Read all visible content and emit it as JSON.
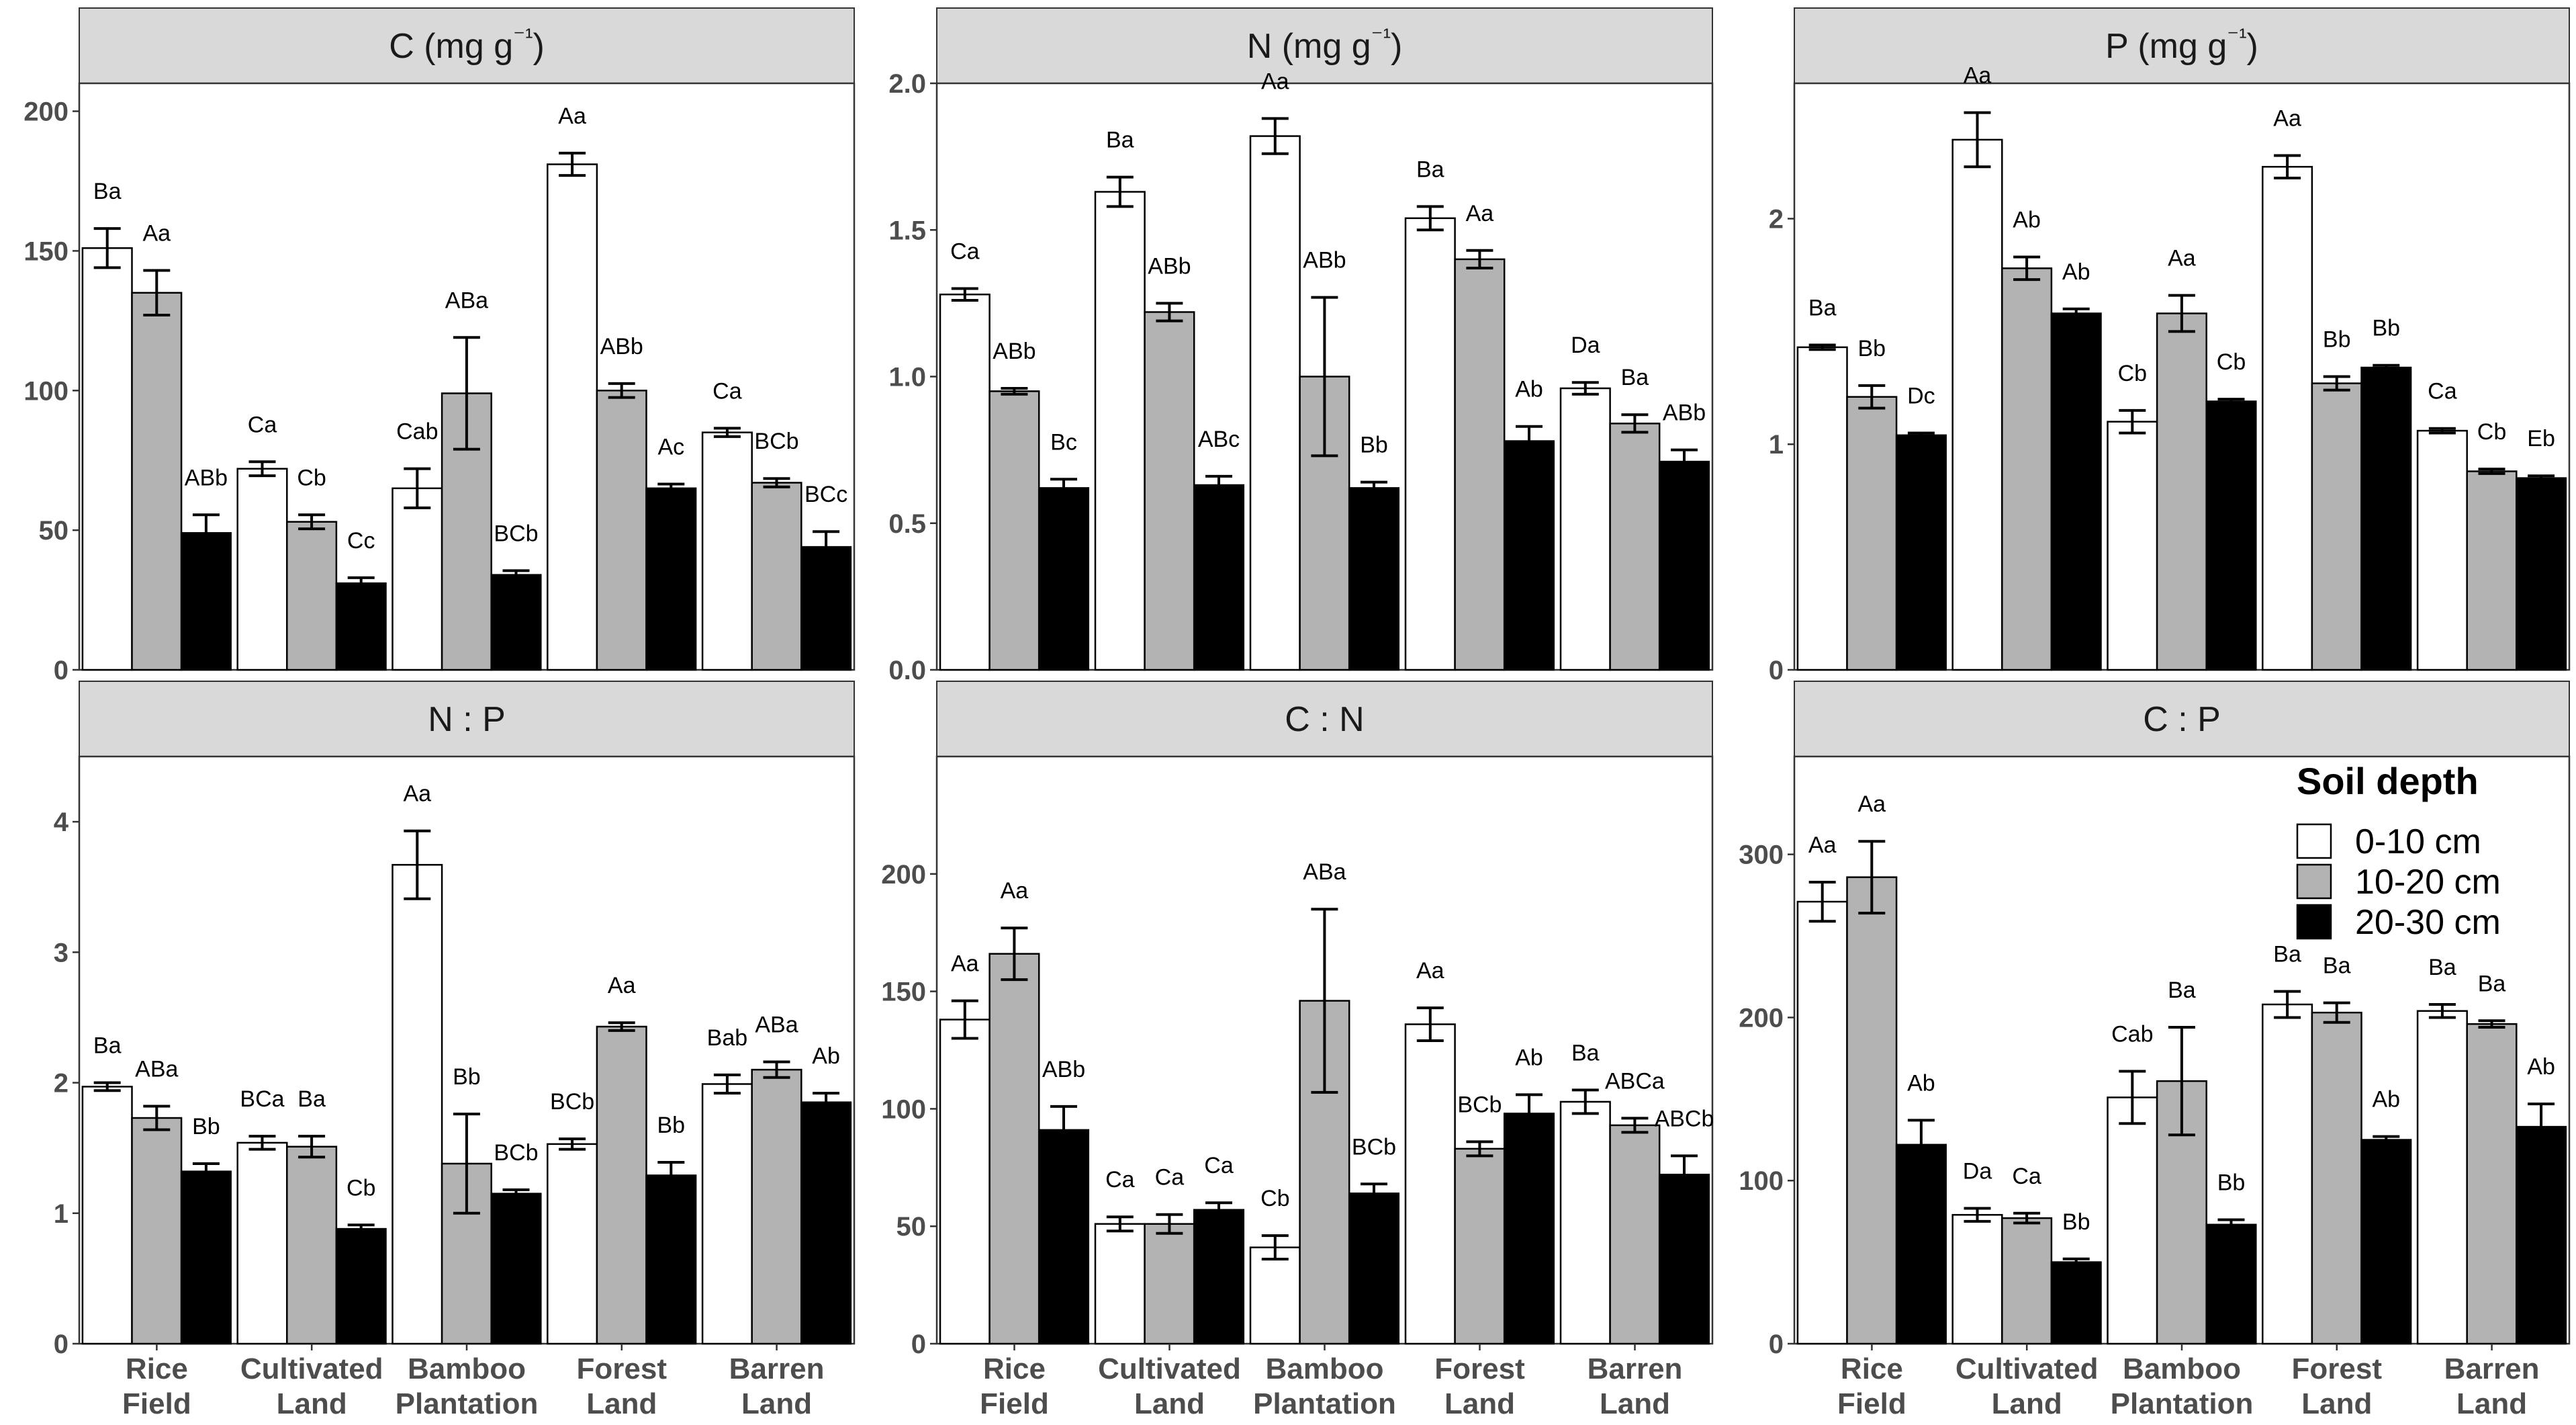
{
  "legend": {
    "title": "Soil depth",
    "entries": [
      {
        "label": "0-10 cm",
        "color": "#ffffff"
      },
      {
        "label": "10-20 cm",
        "color": "#b3b3b3"
      },
      {
        "label": "20-30 cm",
        "color": "#000000"
      }
    ]
  },
  "category_labels": [
    [
      "Rice",
      "Field"
    ],
    [
      "Cultivated",
      "Land"
    ],
    [
      "Bamboo",
      "Plantation"
    ],
    [
      "Forest",
      "Land"
    ],
    [
      "Barren",
      "Land"
    ]
  ],
  "chart_data": [
    {
      "type": "bar",
      "title": "C (mg g⁻¹)",
      "categories": [
        "Rice Field",
        "Cultivated Land",
        "Bamboo Plantation",
        "Forest Land",
        "Barren Land"
      ],
      "ylim": [
        0,
        210
      ],
      "yticks": [
        0,
        50,
        100,
        150,
        200
      ],
      "ytick_labels": [
        "0",
        "50",
        "100",
        "150",
        "200"
      ],
      "series": [
        {
          "name": "0-10 cm",
          "values": [
            151,
            72,
            65,
            181,
            85
          ],
          "errors": [
            7,
            2.5,
            7,
            4,
            1.5
          ],
          "labels": [
            "Ba",
            "Ca",
            "Cab",
            "Aa",
            "Ca"
          ]
        },
        {
          "name": "10-20 cm",
          "values": [
            135,
            53,
            99,
            100,
            67
          ],
          "errors": [
            8,
            2.5,
            20,
            2.5,
            1.5
          ],
          "labels": [
            "Aa",
            "Cb",
            "ABa",
            "ABb",
            "BCb"
          ]
        },
        {
          "name": "20-30 cm",
          "values": [
            49,
            31,
            34,
            65,
            44
          ],
          "errors": [
            6.5,
            2,
            1.5,
            1.5,
            5.5
          ],
          "labels": [
            "ABb",
            "Cc",
            "BCb",
            "Ac",
            "BCc"
          ]
        }
      ]
    },
    {
      "type": "bar",
      "title": "N (mg g⁻¹)",
      "categories": [
        "Rice Field",
        "Cultivated Land",
        "Bamboo Plantation",
        "Forest Land",
        "Barren Land"
      ],
      "ylim": [
        0,
        2.0
      ],
      "yticks": [
        0,
        0.5,
        1,
        1.5,
        2
      ],
      "ytick_labels": [
        "0.0",
        "0.5",
        "1.0",
        "1.5",
        "2.0"
      ],
      "series": [
        {
          "name": "0-10 cm",
          "values": [
            1.28,
            1.63,
            1.82,
            1.54,
            0.96
          ],
          "errors": [
            0.02,
            0.05,
            0.06,
            0.04,
            0.02
          ],
          "labels": [
            "Ca",
            "Ba",
            "Aa",
            "Ba",
            "Da"
          ]
        },
        {
          "name": "10-20 cm",
          "values": [
            0.95,
            1.22,
            1.0,
            1.4,
            0.84
          ],
          "errors": [
            0.01,
            0.03,
            0.27,
            0.03,
            0.03
          ],
          "labels": [
            "ABb",
            "ABb",
            "ABb",
            "Aa",
            "Ba"
          ]
        },
        {
          "name": "20-30 cm",
          "values": [
            0.62,
            0.63,
            0.62,
            0.78,
            0.71
          ],
          "errors": [
            0.03,
            0.03,
            0.02,
            0.05,
            0.04
          ],
          "labels": [
            "Bc",
            "ABc",
            "Bb",
            "Ab",
            "ABb"
          ]
        }
      ]
    },
    {
      "type": "bar",
      "title": "P (mg g⁻¹)",
      "categories": [
        "Rice Field",
        "Cultivated Land",
        "Bamboo Plantation",
        "Forest Land",
        "Barren Land"
      ],
      "ylim": [
        0,
        2.6
      ],
      "yticks": [
        0,
        1,
        2
      ],
      "ytick_labels": [
        "0",
        "1",
        "2"
      ],
      "series": [
        {
          "name": "0-10 cm",
          "values": [
            1.43,
            2.35,
            1.1,
            2.23,
            1.06
          ],
          "errors": [
            0.01,
            0.12,
            0.05,
            0.05,
            0.01
          ],
          "labels": [
            "Ba",
            "Aa",
            "Cb",
            "Aa",
            "Ca"
          ]
        },
        {
          "name": "10-20 cm",
          "values": [
            1.21,
            1.78,
            1.58,
            1.27,
            0.88
          ],
          "errors": [
            0.05,
            0.05,
            0.08,
            0.03,
            0.01
          ],
          "labels": [
            "Bb",
            "Ab",
            "Aa",
            "Bb",
            "Cb"
          ]
        },
        {
          "name": "20-30 cm",
          "values": [
            1.04,
            1.58,
            1.19,
            1.34,
            0.85
          ],
          "errors": [
            0.01,
            0.02,
            0.01,
            0.01,
            0.01
          ],
          "labels": [
            "Dc",
            "Ab",
            "Cb",
            "Bb",
            "Eb"
          ]
        }
      ]
    },
    {
      "type": "bar",
      "title": "N : P",
      "categories": [
        "Rice Field",
        "Cultivated Land",
        "Bamboo Plantation",
        "Forest Land",
        "Barren Land"
      ],
      "ylim": [
        0,
        4.5
      ],
      "yticks": [
        0,
        1,
        2,
        3,
        4
      ],
      "ytick_labels": [
        "0",
        "1",
        "2",
        "3",
        "4"
      ],
      "series": [
        {
          "name": "0-10 cm",
          "values": [
            1.97,
            1.54,
            3.67,
            1.53,
            1.99
          ],
          "errors": [
            0.03,
            0.05,
            0.26,
            0.04,
            0.07
          ],
          "labels": [
            "Ba",
            "BCa",
            "Aa",
            "BCb",
            "Bab"
          ]
        },
        {
          "name": "10-20 cm",
          "values": [
            1.73,
            1.51,
            1.38,
            2.43,
            2.1
          ],
          "errors": [
            0.09,
            0.08,
            0.38,
            0.03,
            0.06
          ],
          "labels": [
            "ABa",
            "Ba",
            "Bb",
            "Aa",
            "ABa"
          ]
        },
        {
          "name": "20-30 cm",
          "values": [
            1.32,
            0.88,
            1.15,
            1.29,
            1.85
          ],
          "errors": [
            0.06,
            0.03,
            0.03,
            0.1,
            0.07
          ],
          "labels": [
            "Bb",
            "Cb",
            "BCb",
            "Bb",
            "Ab"
          ]
        }
      ]
    },
    {
      "type": "bar",
      "title": "C : N",
      "categories": [
        "Rice Field",
        "Cultivated Land",
        "Bamboo Plantation",
        "Forest Land",
        "Barren Land"
      ],
      "ylim": [
        0,
        250
      ],
      "yticks": [
        0,
        50,
        100,
        150,
        200
      ],
      "ytick_labels": [
        "0",
        "50",
        "100",
        "150",
        "200"
      ],
      "series": [
        {
          "name": "0-10 cm",
          "values": [
            138,
            51,
            41,
            136,
            103
          ],
          "errors": [
            8,
            3,
            5,
            7,
            5
          ],
          "labels": [
            "Aa",
            "Ca",
            "Cb",
            "Aa",
            "Ba"
          ]
        },
        {
          "name": "10-20 cm",
          "values": [
            166,
            51,
            146,
            83,
            93
          ],
          "errors": [
            11,
            4,
            39,
            3,
            3
          ],
          "labels": [
            "Aa",
            "Ca",
            "ABa",
            "BCb",
            "ABCa"
          ]
        },
        {
          "name": "20-30 cm",
          "values": [
            91,
            57,
            64,
            98,
            72
          ],
          "errors": [
            10,
            3,
            4,
            8,
            8
          ],
          "labels": [
            "ABb",
            "Ca",
            "BCb",
            "Ab",
            "ABCb"
          ]
        }
      ]
    },
    {
      "type": "bar",
      "title": "C : P",
      "categories": [
        "Rice Field",
        "Cultivated Land",
        "Bamboo Plantation",
        "Forest Land",
        "Barren Land"
      ],
      "ylim": [
        0,
        360
      ],
      "yticks": [
        0,
        100,
        200,
        300
      ],
      "ytick_labels": [
        "0",
        "100",
        "200",
        "300"
      ],
      "series": [
        {
          "name": "0-10 cm",
          "values": [
            271,
            79,
            151,
            208,
            204
          ],
          "errors": [
            12,
            4,
            16,
            8,
            4
          ],
          "labels": [
            "Aa",
            "Da",
            "Cab",
            "Ba",
            "Ba"
          ]
        },
        {
          "name": "10-20 cm",
          "values": [
            286,
            77,
            161,
            203,
            196
          ],
          "errors": [
            22,
            3,
            33,
            6,
            2
          ],
          "labels": [
            "Aa",
            "Ca",
            "Ba",
            "Ba",
            "Ba"
          ]
        },
        {
          "name": "20-30 cm",
          "values": [
            122,
            50,
            73,
            125,
            133
          ],
          "errors": [
            15,
            2,
            3,
            2,
            14
          ],
          "labels": [
            "Ab",
            "Bb",
            "Bb",
            "Ab",
            "Ab"
          ]
        }
      ]
    }
  ]
}
